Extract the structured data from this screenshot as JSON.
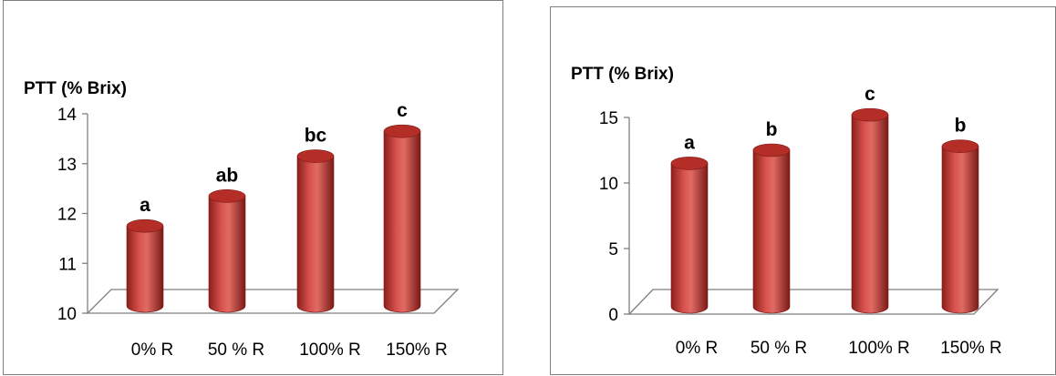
{
  "chart_data": [
    {
      "type": "bar",
      "ylabel": "PTT (% Brix)",
      "categories": [
        "0% R",
        "50 % R",
        "100% R",
        "150% R"
      ],
      "values": [
        11.75,
        12.35,
        13.15,
        13.65
      ],
      "labels": [
        "a",
        "ab",
        "bc",
        "c"
      ],
      "yticks": [
        "10",
        "11",
        "12",
        "13",
        "14"
      ],
      "ylim": [
        10,
        14
      ],
      "bar_color": "#c0392b",
      "grid": false
    },
    {
      "type": "bar",
      "ylabel": "PTT (% Brix)",
      "categories": [
        "0% R",
        "50 % R",
        "100% R",
        "150% R"
      ],
      "values": [
        11.5,
        12.5,
        15.2,
        12.8
      ],
      "labels": [
        "a",
        "b",
        "c",
        "b"
      ],
      "yticks": [
        "0",
        "5",
        "10",
        "15"
      ],
      "ylim": [
        0,
        15
      ],
      "bar_color": "#c0392b",
      "grid": false
    }
  ]
}
